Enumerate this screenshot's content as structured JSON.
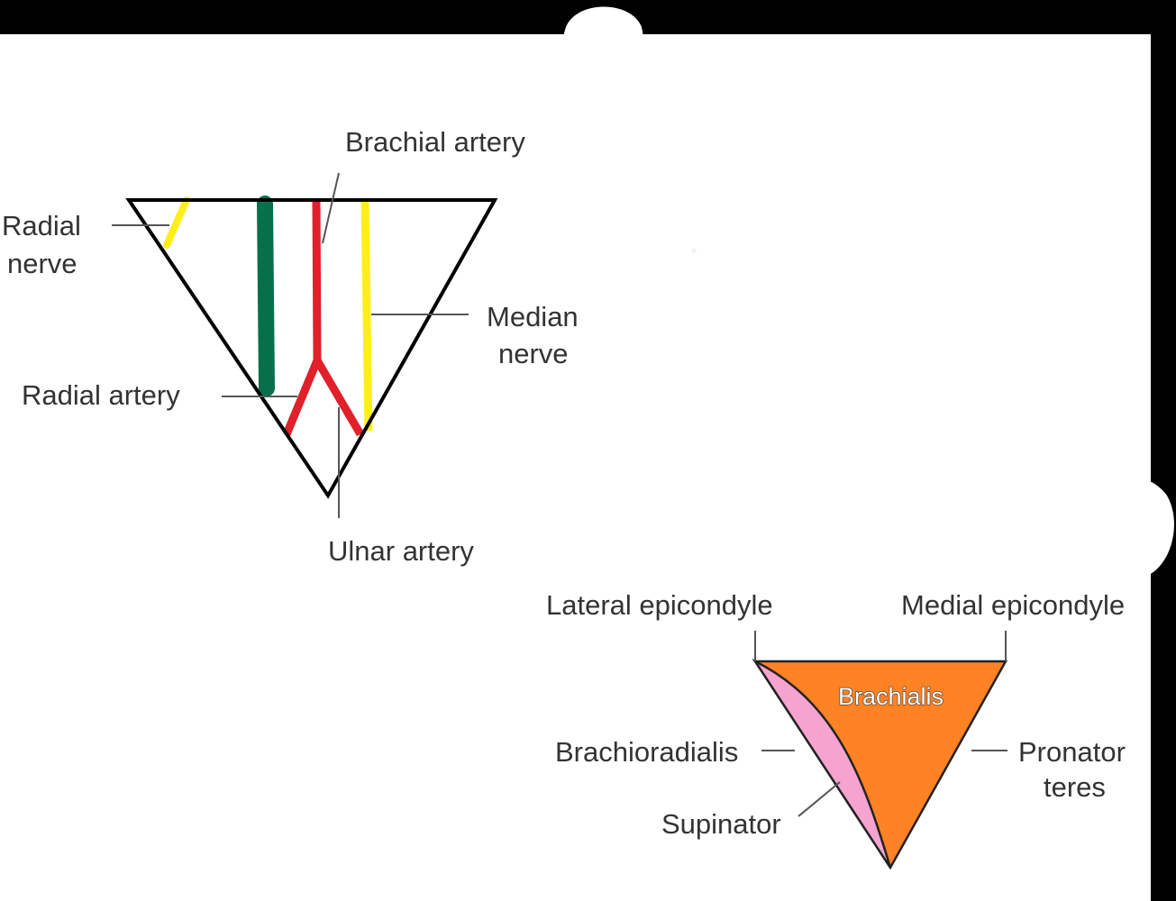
{
  "cubital_fossa_contents": {
    "labels": {
      "brachial_artery": "Brachial artery",
      "radial_nerve_line1": "Radial",
      "radial_nerve_line2": "nerve",
      "median_nerve_line1": "Median",
      "median_nerve_line2": "nerve",
      "radial_artery": "Radial artery",
      "ulnar_artery": "Ulnar artery"
    },
    "colors": {
      "artery": "#e0202a",
      "nerve": "#ffee1a",
      "tendon": "#06704a",
      "outline": "#000000"
    }
  },
  "cubital_fossa_boundaries": {
    "labels": {
      "lateral_epicondyle": "Lateral epicondyle",
      "medial_epicondyle": "Medial epicondyle",
      "brachialis": "Brachialis",
      "brachioradialis": "Brachioradialis",
      "pronator_teres_line1": "Pronator",
      "pronator_teres_line2": "teres",
      "supinator": "Supinator"
    },
    "colors": {
      "brachialis": "#ff8224",
      "supinator": "#f7a3cf",
      "outline": "#222222"
    }
  }
}
